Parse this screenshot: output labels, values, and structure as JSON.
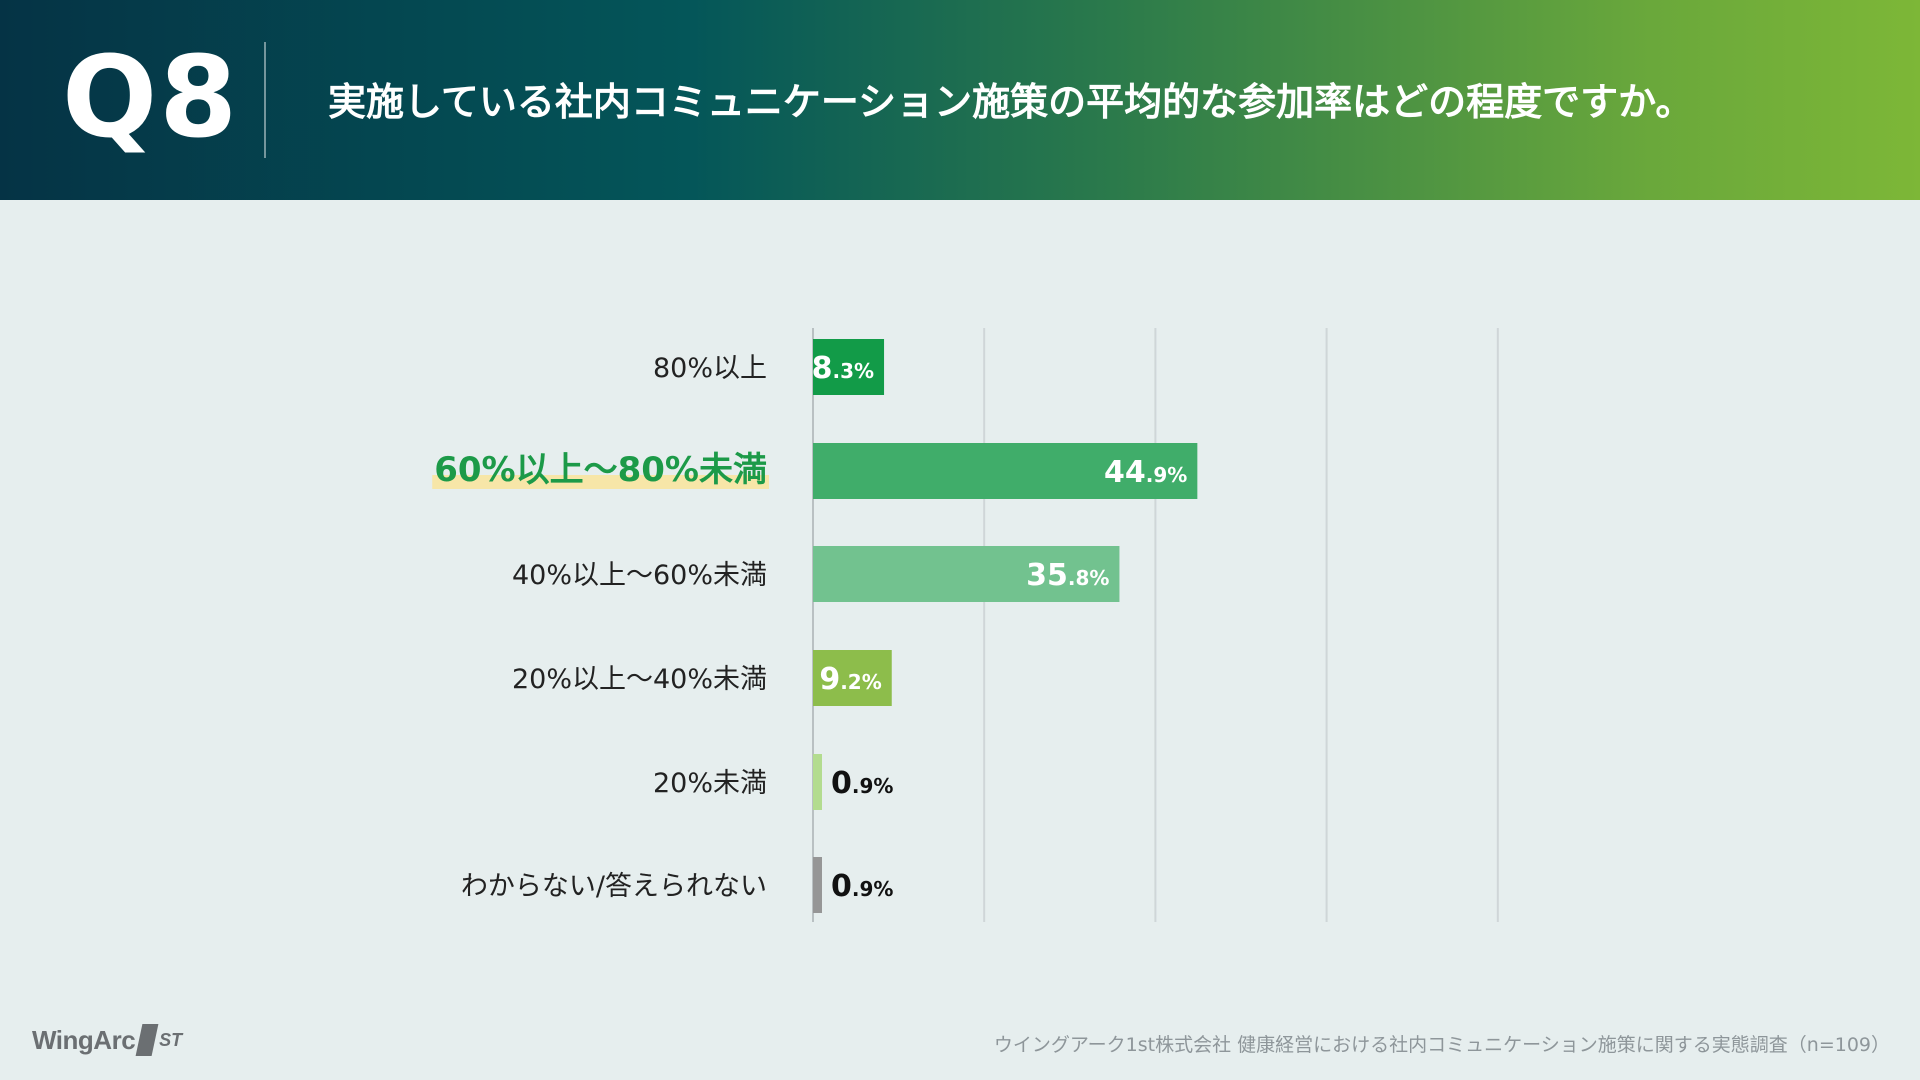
{
  "header": {
    "question_id": "Q8",
    "question": "実施している社内コミュニケーション施策の平均的な参加率はどの程度ですか。"
  },
  "chart_data": {
    "type": "bar",
    "orientation": "horizontal",
    "title": "実施している社内コミュニケーション施策の平均的な参加率はどの程度ですか。",
    "xlim": [
      0,
      80
    ],
    "grid": true,
    "categories": [
      "80%以上",
      "60%以上〜80%未満",
      "40%以上〜60%未満",
      "20%以上〜40%未満",
      "20%未満",
      "わからない/答えられない"
    ],
    "values": [
      8.3,
      44.9,
      35.8,
      9.2,
      0.9,
      0.9
    ],
    "value_labels": [
      {
        "int": "8",
        "dec": ".3%"
      },
      {
        "int": "44",
        "dec": ".9%"
      },
      {
        "int": "35",
        "dec": ".8%"
      },
      {
        "int": "9",
        "dec": ".2%"
      },
      {
        "int": "0",
        "dec": ".9%"
      },
      {
        "int": "0",
        "dec": ".9%"
      }
    ],
    "colors": [
      "#129b48",
      "#40ad6a",
      "#72c28f",
      "#8dbd4b",
      "#b3dc8f",
      "#969696"
    ],
    "highlight_index": 1,
    "highlight_text_color": "#1c9a48",
    "highlight_marker_color": "#f7e6a8"
  },
  "footer": {
    "logo_text": "WingArc",
    "logo_suffix": "ST",
    "source": "ウイングアーク1st株式会社 健康経営における社内コミュニケーション施策に関する実態調査（n=109）"
  }
}
